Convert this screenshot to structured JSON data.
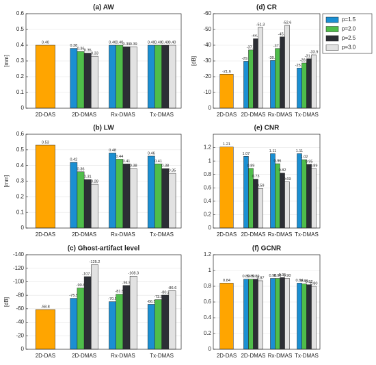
{
  "legend": {
    "position": "right",
    "series": [
      {
        "name": "p=1.5",
        "color": "#1b8fd2"
      },
      {
        "name": "p=2.0",
        "color": "#4fbd4a"
      },
      {
        "name": "p=2.5",
        "color": "#2c2e35"
      },
      {
        "name": "p=3.0",
        "color": "#e2e2e2"
      }
    ]
  },
  "chart_data": [
    {
      "type": "bar",
      "title": "(a) AW",
      "ylabel": "[mm]",
      "ylim": [
        0,
        0.6
      ],
      "yticks": [
        0,
        0.1,
        0.2,
        0.3,
        0.4,
        0.5,
        0.6
      ],
      "grid": true,
      "reference": {
        "category": "2D-DAS",
        "value": 0.4,
        "value_label": "0.40",
        "color": "#ffa500"
      },
      "categories": [
        "2D-DMAS",
        "Rx-DMAS",
        "Tx-DMAS"
      ],
      "series": [
        {
          "values": [
            0.38,
            0.4,
            0.4
          ],
          "value_labels": [
            "0.38",
            "0.40",
            "0.40"
          ]
        },
        {
          "values": [
            0.36,
            0.4,
            0.4
          ],
          "value_labels": [
            "0.36",
            "0.40",
            "0.40"
          ]
        },
        {
          "values": [
            0.35,
            0.39,
            0.4
          ],
          "value_labels": [
            "0.35",
            "0.39",
            "0.40"
          ]
        },
        {
          "values": [
            0.33,
            0.39,
            0.4
          ],
          "value_labels": [
            "0.33",
            "0.39",
            "0.40"
          ]
        }
      ]
    },
    {
      "type": "bar",
      "title": "(d) CR",
      "ylabel": "[dB]",
      "ylim": [
        0,
        -60
      ],
      "yticks": [
        0,
        -10,
        -20,
        -30,
        -40,
        -50,
        -60
      ],
      "grid": true,
      "reference": {
        "category": "2D-DAS",
        "value": -21.6,
        "value_label": "-21.6",
        "color": "#ffa500"
      },
      "categories": [
        "2D-DMAS",
        "Rx-DMAS",
        "Tx-DMAS"
      ],
      "series": [
        {
          "values": [
            -29.8,
            -30.3,
            -25.5
          ],
          "value_labels": [
            "-29.8",
            "-30.3",
            "-25.5"
          ]
        },
        {
          "values": [
            -37,
            -37.9,
            -28.7
          ],
          "value_labels": [
            "-37.0",
            "-37.9",
            "-28.7"
          ]
        },
        {
          "values": [
            -44.1,
            -45.3,
            -31.4
          ],
          "value_labels": [
            "-44.1",
            "-45.3",
            "-31.4"
          ]
        },
        {
          "values": [
            -51.3,
            -52.6,
            -33.9
          ],
          "value_labels": [
            "-51.3",
            "-52.6",
            "-33.9"
          ]
        }
      ]
    },
    {
      "type": "bar",
      "title": "(b) LW",
      "ylabel": "[mm]",
      "ylim": [
        0,
        0.6
      ],
      "yticks": [
        0,
        0.1,
        0.2,
        0.3,
        0.4,
        0.5,
        0.6
      ],
      "grid": true,
      "reference": {
        "category": "2D-DAS",
        "value": 0.53,
        "value_label": "0.53",
        "color": "#ffa500"
      },
      "categories": [
        "2D-DMAS",
        "Rx-DMAS",
        "Tx-DMAS"
      ],
      "series": [
        {
          "values": [
            0.42,
            0.48,
            0.46
          ],
          "value_labels": [
            "0.42",
            "0.48",
            "0.46"
          ]
        },
        {
          "values": [
            0.36,
            0.44,
            0.41
          ],
          "value_labels": [
            "0.36",
            "0.44",
            "0.41"
          ]
        },
        {
          "values": [
            0.31,
            0.41,
            0.38
          ],
          "value_labels": [
            "0.31",
            "0.41",
            "0.38"
          ]
        },
        {
          "values": [
            0.28,
            0.38,
            0.35
          ],
          "value_labels": [
            "0.28",
            "0.38",
            "0.35"
          ]
        }
      ]
    },
    {
      "type": "bar",
      "title": "(e) CNR",
      "ylim": [
        0,
        1.4
      ],
      "yticks": [
        0,
        0.2,
        0.4,
        0.6,
        0.8,
        1,
        1.2
      ],
      "grid": true,
      "reference": {
        "category": "2D-DAS",
        "value": 1.21,
        "value_label": "1.21",
        "color": "#ffa500"
      },
      "categories": [
        "2D-DMAS",
        "Rx-DMAS",
        "Tx-DMAS"
      ],
      "series": [
        {
          "values": [
            1.07,
            1.11,
            1.11
          ],
          "value_labels": [
            "1.07",
            "1.11",
            "1.11"
          ]
        },
        {
          "values": [
            0.89,
            0.96,
            1.02
          ],
          "value_labels": [
            "0.89",
            "0.96",
            "1.02"
          ]
        },
        {
          "values": [
            0.73,
            0.82,
            0.95
          ],
          "value_labels": [
            "0.73",
            "0.82",
            "0.95"
          ]
        },
        {
          "values": [
            0.59,
            0.69,
            0.89
          ],
          "value_labels": [
            "0.59",
            "0.69",
            "0.89"
          ]
        }
      ]
    },
    {
      "type": "bar",
      "title": "(c) Ghost-artifact level",
      "ylabel": "[dB]",
      "ylim": [
        0,
        -140
      ],
      "yticks": [
        0,
        -20,
        -40,
        -60,
        -80,
        -100,
        -120,
        -140
      ],
      "grid": true,
      "reference": {
        "category": "2D-DAS",
        "value": -58.8,
        "value_label": "-58.8",
        "color": "#ffa500"
      },
      "categories": [
        "2D-DMAS",
        "Rx-DMAS",
        "Tx-DMAS"
      ],
      "series": [
        {
          "values": [
            -75.5,
            -70.5,
            -66.5
          ],
          "value_labels": [
            "-75.5",
            "-70.5",
            "-66.5"
          ]
        },
        {
          "values": [
            -90.8,
            -81.5,
            -73.5
          ],
          "value_labels": [
            "-90.8",
            "-81.5",
            "-73.5"
          ]
        },
        {
          "values": [
            -107.6,
            -94.5,
            -80.2
          ],
          "value_labels": [
            "-107.6",
            "-94.5",
            "-80.2"
          ]
        },
        {
          "values": [
            -125.2,
            -108.3,
            -86.6
          ],
          "value_labels": [
            "-125.2",
            "-108.3",
            "-86.6"
          ]
        }
      ]
    },
    {
      "type": "bar",
      "title": "(f) GCNR",
      "ylim": [
        0,
        1.2
      ],
      "yticks": [
        0,
        0.2,
        0.4,
        0.6,
        0.8,
        1,
        1.2
      ],
      "grid": true,
      "reference": {
        "category": "2D-DAS",
        "value": 0.84,
        "value_label": "0.84",
        "color": "#ffa500"
      },
      "categories": [
        "2D-DMAS",
        "Rx-DMAS",
        "Tx-DMAS"
      ],
      "series": [
        {
          "values": [
            0.89,
            0.9,
            0.84
          ],
          "value_labels": [
            "0.89",
            "0.90",
            "0.84"
          ]
        },
        {
          "values": [
            0.89,
            0.9,
            0.83
          ],
          "value_labels": [
            "0.89",
            "0.90",
            "0.83"
          ]
        },
        {
          "values": [
            0.89,
            0.91,
            0.82
          ],
          "value_labels": [
            "0.89",
            "0.91",
            "0.82"
          ]
        },
        {
          "values": [
            0.87,
            0.9,
            0.8
          ],
          "value_labels": [
            "0.87",
            "0.90",
            "0.80"
          ]
        }
      ]
    }
  ]
}
